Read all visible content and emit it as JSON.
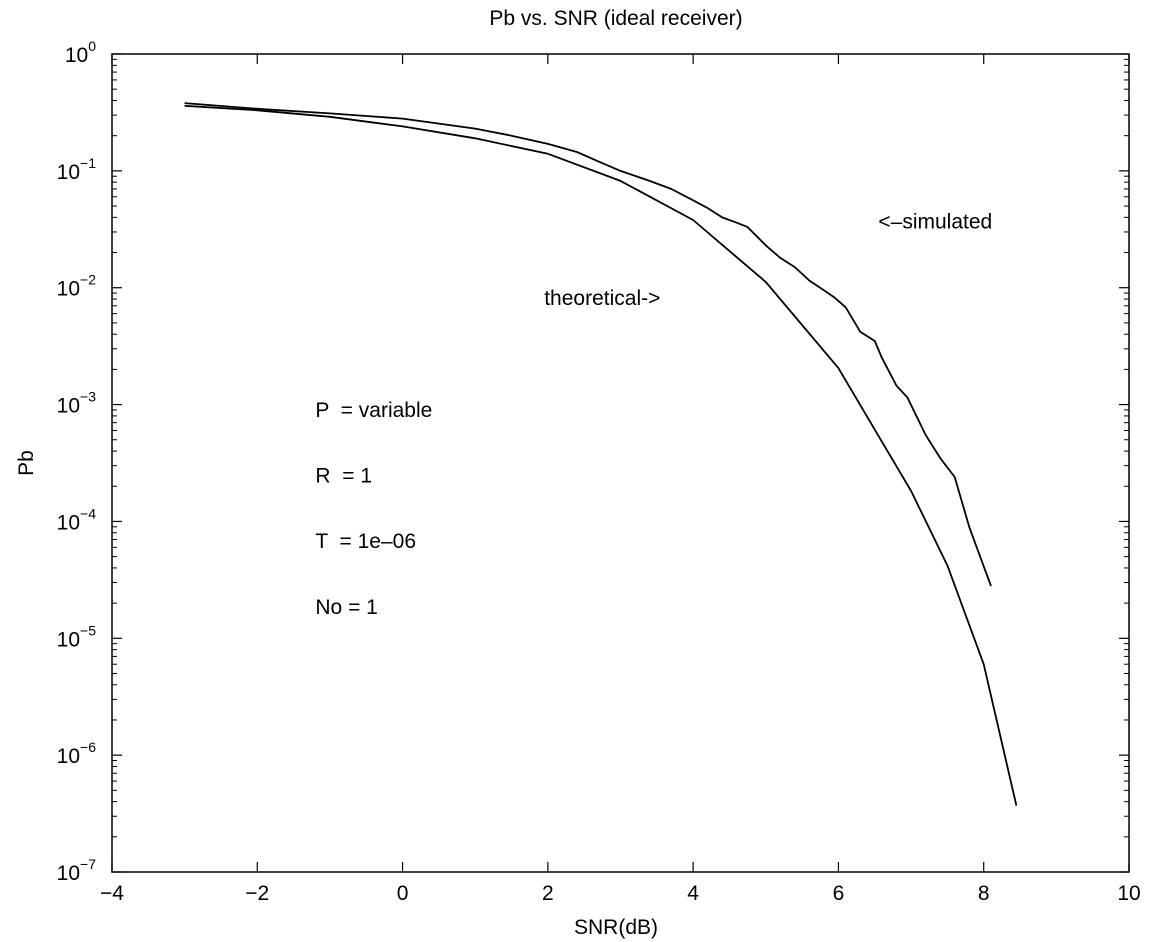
{
  "chart_data": {
    "type": "line",
    "title": "Pb vs. SNR (ideal receiver)",
    "xlabel": "SNR(dB)",
    "ylabel": "Pb",
    "xlim": [
      -4,
      10
    ],
    "ylim": [
      1e-07,
      1
    ],
    "yscale": "log",
    "grid": false,
    "legend": "none",
    "x_ticks": [
      -4,
      -2,
      0,
      2,
      4,
      6,
      8,
      10
    ],
    "x_tick_labels": [
      "−4",
      "−2",
      "0",
      "2",
      "4",
      "6",
      "8",
      "10"
    ],
    "y_ticks": [
      {
        "value": 1,
        "base": "10",
        "exp": "0"
      },
      {
        "value": 0.1,
        "base": "10",
        "exp": "−1"
      },
      {
        "value": 0.01,
        "base": "10",
        "exp": "−2"
      },
      {
        "value": 0.001,
        "base": "10",
        "exp": "−3"
      },
      {
        "value": 0.0001,
        "base": "10",
        "exp": "−4"
      },
      {
        "value": 1e-05,
        "base": "10",
        "exp": "−5"
      },
      {
        "value": 1e-06,
        "base": "10",
        "exp": "−6"
      },
      {
        "value": 1e-07,
        "base": "10",
        "exp": "−7"
      }
    ],
    "series": [
      {
        "color": "#000000",
        "x": [
          -3,
          -2,
          -1,
          0,
          1,
          2,
          3,
          4,
          5,
          6,
          7,
          7.5,
          8,
          8.45
        ],
        "y": [
          0.36,
          0.33,
          0.29,
          0.24,
          0.19,
          0.14,
          0.082,
          0.038,
          0.0112,
          0.00205,
          0.000182,
          4.2e-05,
          6e-06,
          3.7e-07
        ]
      },
      {
        "color": "#000000",
        "x": [
          -3,
          -2,
          -1,
          0,
          1,
          1.5,
          2,
          2.4,
          2.7,
          3,
          3.4,
          3.7,
          4,
          4.2,
          4.4,
          4.6,
          4.75,
          5,
          5.2,
          5.4,
          5.6,
          5.8,
          5.95,
          6.1,
          6.3,
          6.5,
          6.6,
          6.8,
          6.95,
          7.2,
          7.4,
          7.6,
          7.8,
          7.95,
          8.1
        ],
        "y": [
          0.38,
          0.34,
          0.31,
          0.28,
          0.23,
          0.2,
          0.17,
          0.145,
          0.12,
          0.1,
          0.082,
          0.07,
          0.056,
          0.048,
          0.04,
          0.036,
          0.033,
          0.023,
          0.018,
          0.015,
          0.0115,
          0.0095,
          0.0082,
          0.0068,
          0.0042,
          0.0035,
          0.0025,
          0.00145,
          0.00115,
          0.00055,
          0.00035,
          0.00024,
          9e-05,
          5e-05,
          2.8e-05
        ]
      }
    ],
    "annotations": [
      {
        "text": "theoretical->",
        "x": 1.95,
        "y": 0.0071
      },
      {
        "text": "<–simulated",
        "x": 6.55,
        "y": 0.032
      }
    ],
    "parameters": [
      {
        "text": "P  = variable",
        "x": -1.2,
        "y": 0.00078
      },
      {
        "text": "R  = 1",
        "x": -1.2,
        "y": 0.000215
      },
      {
        "text": "T  = 1e–06",
        "x": -1.2,
        "y": 5.9e-05
      },
      {
        "text": "No = 1",
        "x": -1.2,
        "y": 1.62e-05
      }
    ]
  }
}
